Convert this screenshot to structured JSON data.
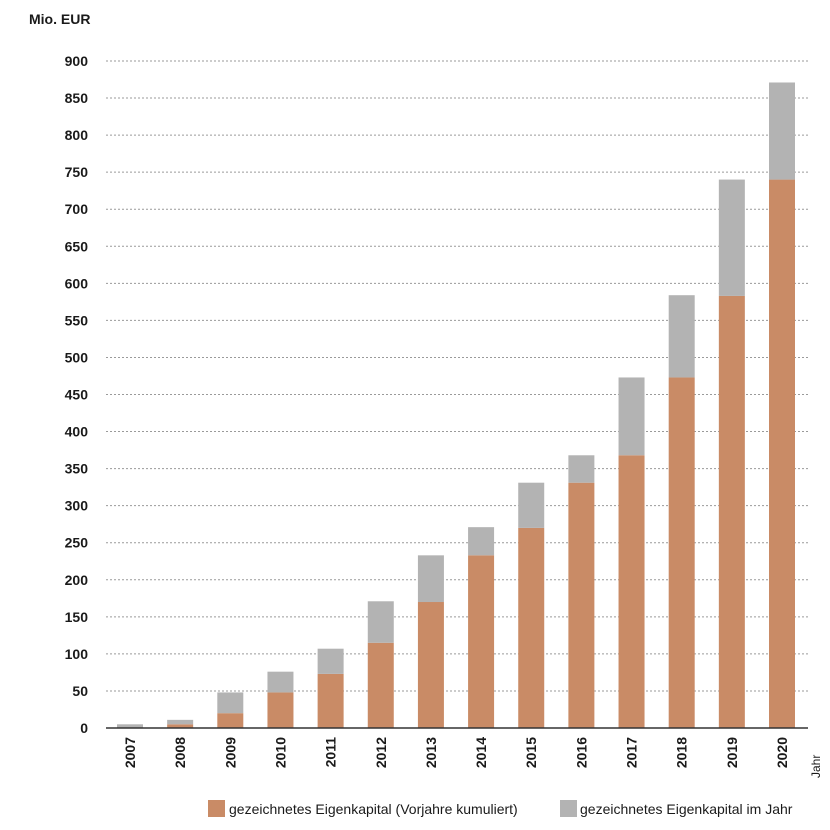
{
  "chart_data": {
    "type": "bar",
    "stacked": true,
    "y_unit_label": "Mio. EUR",
    "x_unit_label": "Jahr",
    "categories": [
      "2007",
      "2008",
      "2009",
      "2010",
      "2011",
      "2012",
      "2013",
      "2014",
      "2015",
      "2016",
      "2017",
      "2018",
      "2019",
      "2020"
    ],
    "series": [
      {
        "name": "gezeichnetes Eigenkapital (Vorjahre kumuliert)",
        "color": "#c98b66",
        "values": [
          0,
          5,
          20,
          48,
          73,
          115,
          170,
          233,
          270,
          331,
          368,
          473,
          583,
          740
        ]
      },
      {
        "name": "gezeichnetes Eigenkapital im Jahr",
        "color": "#b3b3b3",
        "values": [
          5,
          6,
          28,
          28,
          34,
          56,
          63,
          38,
          61,
          37,
          105,
          111,
          157,
          131
        ]
      }
    ],
    "ylim": [
      0,
      900
    ],
    "yticks": [
      0,
      50,
      100,
      150,
      200,
      250,
      300,
      350,
      400,
      450,
      500,
      550,
      600,
      650,
      700,
      750,
      800,
      850,
      900
    ],
    "grid": true,
    "legend_position": "bottom-right"
  }
}
